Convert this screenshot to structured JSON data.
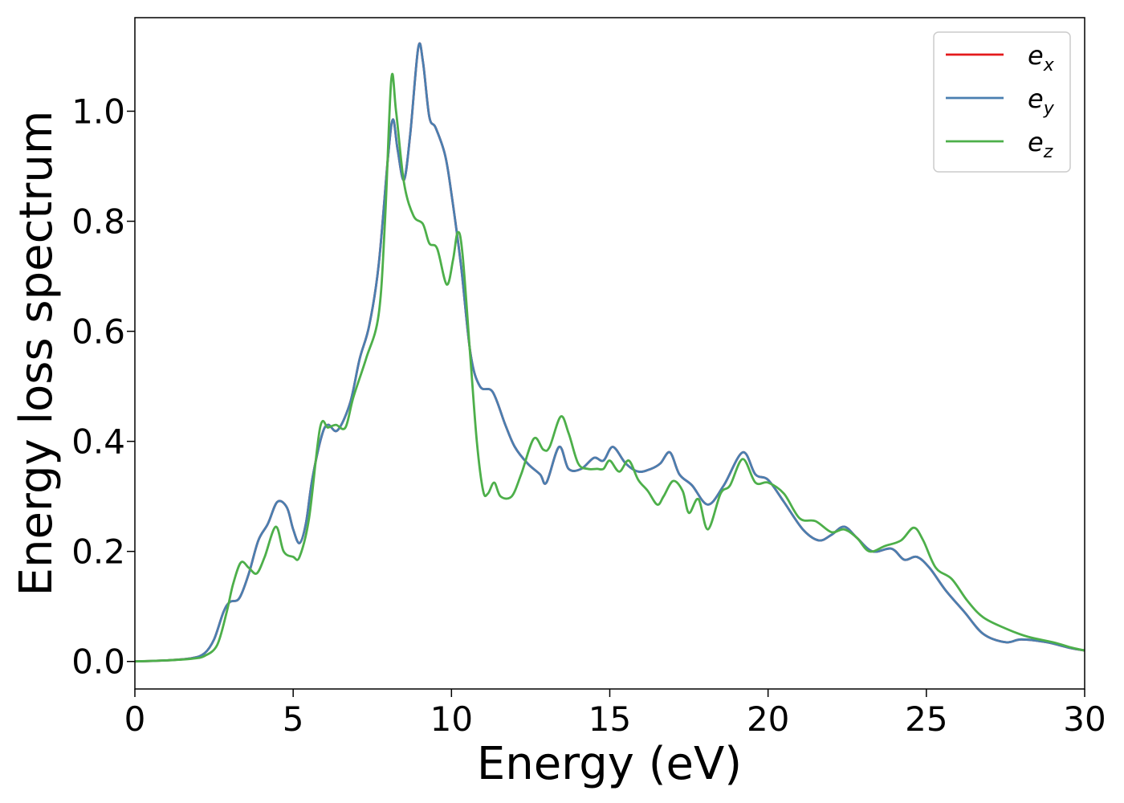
{
  "chart_data": {
    "type": "line",
    "title": "",
    "xlabel": "Energy (eV)",
    "ylabel": "Energy loss spectrum",
    "xlim": [
      0,
      30
    ],
    "ylim": [
      -0.05,
      1.17
    ],
    "xticks": [
      "0",
      "5",
      "10",
      "15",
      "20",
      "25",
      "30"
    ],
    "yticks": [
      "0.0",
      "0.2",
      "0.4",
      "0.6",
      "0.8",
      "1.0"
    ],
    "grid": false,
    "legend_position": "top-right",
    "series": [
      {
        "name": "e",
        "subscript": "x",
        "color": "#e41a1c",
        "points": [
          [
            0,
            0
          ],
          [
            1,
            0.002
          ],
          [
            1.8,
            0.006
          ],
          [
            2.2,
            0.015
          ],
          [
            2.5,
            0.04
          ],
          [
            2.8,
            0.09
          ],
          [
            3,
            0.108
          ],
          [
            3.3,
            0.115
          ],
          [
            3.6,
            0.16
          ],
          [
            3.9,
            0.22
          ],
          [
            4.2,
            0.25
          ],
          [
            4.5,
            0.29
          ],
          [
            4.8,
            0.28
          ],
          [
            5.0,
            0.24
          ],
          [
            5.2,
            0.215
          ],
          [
            5.4,
            0.25
          ],
          [
            5.6,
            0.33
          ],
          [
            5.9,
            0.41
          ],
          [
            6.1,
            0.43
          ],
          [
            6.4,
            0.42
          ],
          [
            6.8,
            0.47
          ],
          [
            7.1,
            0.55
          ],
          [
            7.4,
            0.61
          ],
          [
            7.7,
            0.72
          ],
          [
            8.0,
            0.92
          ],
          [
            8.15,
            0.985
          ],
          [
            8.3,
            0.93
          ],
          [
            8.5,
            0.875
          ],
          [
            8.7,
            0.96
          ],
          [
            8.95,
            1.115
          ],
          [
            9.1,
            1.09
          ],
          [
            9.3,
            0.99
          ],
          [
            9.5,
            0.97
          ],
          [
            9.8,
            0.92
          ],
          [
            10.0,
            0.85
          ],
          [
            10.3,
            0.72
          ],
          [
            10.6,
            0.56
          ],
          [
            10.9,
            0.5
          ],
          [
            11.3,
            0.49
          ],
          [
            11.7,
            0.43
          ],
          [
            12.0,
            0.39
          ],
          [
            12.4,
            0.36
          ],
          [
            12.8,
            0.34
          ],
          [
            13.0,
            0.325
          ],
          [
            13.4,
            0.39
          ],
          [
            13.7,
            0.35
          ],
          [
            14.1,
            0.35
          ],
          [
            14.5,
            0.37
          ],
          [
            14.8,
            0.365
          ],
          [
            15.1,
            0.39
          ],
          [
            15.5,
            0.36
          ],
          [
            15.9,
            0.345
          ],
          [
            16.3,
            0.35
          ],
          [
            16.6,
            0.36
          ],
          [
            16.9,
            0.38
          ],
          [
            17.2,
            0.34
          ],
          [
            17.6,
            0.32
          ],
          [
            18.1,
            0.285
          ],
          [
            18.6,
            0.32
          ],
          [
            19.2,
            0.38
          ],
          [
            19.6,
            0.34
          ],
          [
            20.0,
            0.33
          ],
          [
            20.5,
            0.29
          ],
          [
            21.1,
            0.24
          ],
          [
            21.6,
            0.22
          ],
          [
            22.0,
            0.23
          ],
          [
            22.4,
            0.245
          ],
          [
            22.8,
            0.225
          ],
          [
            23.3,
            0.2
          ],
          [
            23.9,
            0.205
          ],
          [
            24.3,
            0.185
          ],
          [
            24.7,
            0.19
          ],
          [
            25.1,
            0.17
          ],
          [
            25.6,
            0.13
          ],
          [
            26.2,
            0.09
          ],
          [
            26.8,
            0.05
          ],
          [
            27.5,
            0.035
          ],
          [
            28.0,
            0.04
          ],
          [
            28.8,
            0.035
          ],
          [
            29.5,
            0.025
          ],
          [
            30,
            0.02
          ]
        ]
      },
      {
        "name": "e",
        "subscript": "y",
        "color": "#4a7fb0",
        "points": [
          [
            0,
            0
          ],
          [
            1,
            0.002
          ],
          [
            1.8,
            0.006
          ],
          [
            2.2,
            0.015
          ],
          [
            2.5,
            0.04
          ],
          [
            2.8,
            0.09
          ],
          [
            3,
            0.108
          ],
          [
            3.3,
            0.115
          ],
          [
            3.6,
            0.16
          ],
          [
            3.9,
            0.22
          ],
          [
            4.2,
            0.25
          ],
          [
            4.5,
            0.29
          ],
          [
            4.8,
            0.28
          ],
          [
            5.0,
            0.24
          ],
          [
            5.2,
            0.215
          ],
          [
            5.4,
            0.25
          ],
          [
            5.6,
            0.33
          ],
          [
            5.9,
            0.41
          ],
          [
            6.1,
            0.43
          ],
          [
            6.4,
            0.42
          ],
          [
            6.8,
            0.47
          ],
          [
            7.1,
            0.55
          ],
          [
            7.4,
            0.61
          ],
          [
            7.7,
            0.72
          ],
          [
            8.0,
            0.92
          ],
          [
            8.15,
            0.985
          ],
          [
            8.3,
            0.93
          ],
          [
            8.5,
            0.875
          ],
          [
            8.7,
            0.96
          ],
          [
            8.95,
            1.115
          ],
          [
            9.1,
            1.09
          ],
          [
            9.3,
            0.99
          ],
          [
            9.5,
            0.97
          ],
          [
            9.8,
            0.92
          ],
          [
            10.0,
            0.85
          ],
          [
            10.3,
            0.72
          ],
          [
            10.6,
            0.56
          ],
          [
            10.9,
            0.5
          ],
          [
            11.3,
            0.49
          ],
          [
            11.7,
            0.43
          ],
          [
            12.0,
            0.39
          ],
          [
            12.4,
            0.36
          ],
          [
            12.8,
            0.34
          ],
          [
            13.0,
            0.325
          ],
          [
            13.4,
            0.39
          ],
          [
            13.7,
            0.35
          ],
          [
            14.1,
            0.35
          ],
          [
            14.5,
            0.37
          ],
          [
            14.8,
            0.365
          ],
          [
            15.1,
            0.39
          ],
          [
            15.5,
            0.36
          ],
          [
            15.9,
            0.345
          ],
          [
            16.3,
            0.35
          ],
          [
            16.6,
            0.36
          ],
          [
            16.9,
            0.38
          ],
          [
            17.2,
            0.34
          ],
          [
            17.6,
            0.32
          ],
          [
            18.1,
            0.285
          ],
          [
            18.6,
            0.32
          ],
          [
            19.2,
            0.38
          ],
          [
            19.6,
            0.34
          ],
          [
            20.0,
            0.33
          ],
          [
            20.5,
            0.29
          ],
          [
            21.1,
            0.24
          ],
          [
            21.6,
            0.22
          ],
          [
            22.0,
            0.23
          ],
          [
            22.4,
            0.245
          ],
          [
            22.8,
            0.225
          ],
          [
            23.3,
            0.2
          ],
          [
            23.9,
            0.205
          ],
          [
            24.3,
            0.185
          ],
          [
            24.7,
            0.19
          ],
          [
            25.1,
            0.17
          ],
          [
            25.6,
            0.13
          ],
          [
            26.2,
            0.09
          ],
          [
            26.8,
            0.05
          ],
          [
            27.5,
            0.035
          ],
          [
            28.0,
            0.04
          ],
          [
            28.8,
            0.035
          ],
          [
            29.5,
            0.025
          ],
          [
            30,
            0.02
          ]
        ]
      },
      {
        "name": "e",
        "subscript": "z",
        "color": "#4daf4a",
        "points": [
          [
            0,
            0
          ],
          [
            1,
            0.002
          ],
          [
            1.8,
            0.005
          ],
          [
            2.2,
            0.01
          ],
          [
            2.6,
            0.03
          ],
          [
            2.9,
            0.09
          ],
          [
            3.1,
            0.14
          ],
          [
            3.35,
            0.18
          ],
          [
            3.6,
            0.17
          ],
          [
            3.85,
            0.16
          ],
          [
            4.1,
            0.19
          ],
          [
            4.45,
            0.245
          ],
          [
            4.7,
            0.2
          ],
          [
            5.0,
            0.19
          ],
          [
            5.2,
            0.19
          ],
          [
            5.5,
            0.26
          ],
          [
            5.85,
            0.425
          ],
          [
            6.1,
            0.425
          ],
          [
            6.35,
            0.43
          ],
          [
            6.65,
            0.425
          ],
          [
            6.9,
            0.48
          ],
          [
            7.3,
            0.55
          ],
          [
            7.7,
            0.63
          ],
          [
            7.9,
            0.8
          ],
          [
            8.1,
            1.058
          ],
          [
            8.25,
            1.0
          ],
          [
            8.5,
            0.87
          ],
          [
            8.8,
            0.81
          ],
          [
            9.1,
            0.795
          ],
          [
            9.3,
            0.76
          ],
          [
            9.55,
            0.75
          ],
          [
            9.85,
            0.685
          ],
          [
            10.05,
            0.73
          ],
          [
            10.2,
            0.78
          ],
          [
            10.35,
            0.74
          ],
          [
            10.6,
            0.55
          ],
          [
            10.8,
            0.4
          ],
          [
            11.0,
            0.31
          ],
          [
            11.15,
            0.305
          ],
          [
            11.35,
            0.325
          ],
          [
            11.55,
            0.3
          ],
          [
            11.9,
            0.3
          ],
          [
            12.2,
            0.34
          ],
          [
            12.6,
            0.405
          ],
          [
            12.9,
            0.385
          ],
          [
            13.1,
            0.39
          ],
          [
            13.45,
            0.445
          ],
          [
            13.7,
            0.415
          ],
          [
            14.0,
            0.36
          ],
          [
            14.3,
            0.35
          ],
          [
            14.6,
            0.35
          ],
          [
            14.8,
            0.35
          ],
          [
            15.0,
            0.365
          ],
          [
            15.3,
            0.345
          ],
          [
            15.6,
            0.365
          ],
          [
            15.9,
            0.33
          ],
          [
            16.2,
            0.31
          ],
          [
            16.5,
            0.285
          ],
          [
            16.7,
            0.3
          ],
          [
            17.0,
            0.328
          ],
          [
            17.3,
            0.31
          ],
          [
            17.5,
            0.27
          ],
          [
            17.8,
            0.295
          ],
          [
            18.1,
            0.24
          ],
          [
            18.5,
            0.305
          ],
          [
            18.8,
            0.32
          ],
          [
            19.2,
            0.368
          ],
          [
            19.6,
            0.325
          ],
          [
            20.0,
            0.325
          ],
          [
            20.5,
            0.305
          ],
          [
            21.0,
            0.26
          ],
          [
            21.5,
            0.255
          ],
          [
            22.0,
            0.235
          ],
          [
            22.4,
            0.24
          ],
          [
            22.8,
            0.225
          ],
          [
            23.2,
            0.2
          ],
          [
            23.7,
            0.21
          ],
          [
            24.2,
            0.22
          ],
          [
            24.6,
            0.243
          ],
          [
            24.9,
            0.22
          ],
          [
            25.3,
            0.17
          ],
          [
            25.8,
            0.15
          ],
          [
            26.3,
            0.11
          ],
          [
            26.8,
            0.08
          ],
          [
            27.5,
            0.06
          ],
          [
            28.2,
            0.045
          ],
          [
            29.0,
            0.035
          ],
          [
            29.6,
            0.025
          ],
          [
            30,
            0.02
          ]
        ]
      }
    ]
  }
}
